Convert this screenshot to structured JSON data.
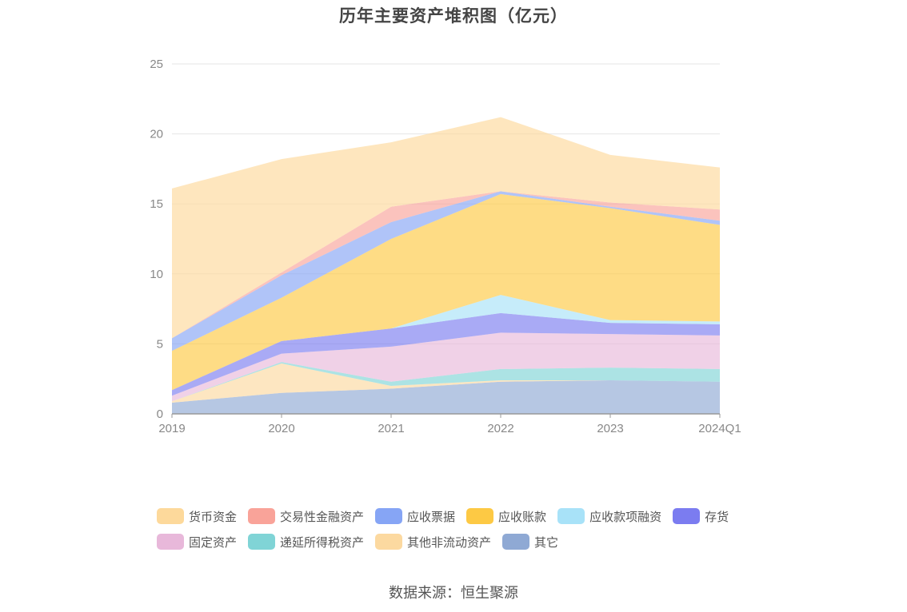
{
  "chart_data": {
    "type": "area",
    "stacked": true,
    "title": "历年主要资产堆积图（亿元）",
    "categories": [
      "2019",
      "2020",
      "2021",
      "2022",
      "2023",
      "2024Q1"
    ],
    "ylim": [
      0,
      25
    ],
    "yticks": [
      0,
      5,
      10,
      15,
      20,
      25
    ],
    "grid": true,
    "legend_position": "bottom",
    "series": [
      {
        "name": "其它",
        "color": "#8fa9d4",
        "values": [
          0.8,
          1.5,
          1.8,
          2.3,
          2.4,
          2.3
        ]
      },
      {
        "name": "其他非流动资产",
        "color": "#fcd9a0",
        "values": [
          0.1,
          2.1,
          0.2,
          0.1,
          0.0,
          0.0
        ]
      },
      {
        "name": "递延所得税资产",
        "color": "#80d4d6",
        "values": [
          0.0,
          0.1,
          0.3,
          0.8,
          0.9,
          0.9
        ]
      },
      {
        "name": "固定资产",
        "color": "#e8b8da",
        "values": [
          0.4,
          0.6,
          2.5,
          2.6,
          2.4,
          2.4
        ]
      },
      {
        "name": "存货",
        "color": "#7b7cf0",
        "values": [
          0.4,
          0.9,
          1.3,
          1.4,
          0.8,
          0.8
        ]
      },
      {
        "name": "应收款项融资",
        "color": "#a8e2f8",
        "values": [
          0.0,
          0.0,
          0.0,
          1.3,
          0.2,
          0.2
        ]
      },
      {
        "name": "应收账款",
        "color": "#fdc944",
        "values": [
          2.8,
          3.1,
          6.4,
          7.2,
          8.0,
          6.9
        ]
      },
      {
        "name": "应收票据",
        "color": "#86a5f5",
        "values": [
          0.9,
          1.6,
          1.2,
          0.2,
          0.1,
          0.3
        ]
      },
      {
        "name": "交易性金融资产",
        "color": "#f9a399",
        "values": [
          0.0,
          0.2,
          1.1,
          0.0,
          0.3,
          0.8
        ]
      },
      {
        "name": "货币资金",
        "color": "#fdd99b",
        "values": [
          10.7,
          8.1,
          4.6,
          5.3,
          3.4,
          3.0
        ]
      }
    ],
    "area_opacity": 0.65
  },
  "legend": {
    "row1": [
      {
        "label": "货币资金",
        "color": "#fdd99b"
      },
      {
        "label": "交易性金融资产",
        "color": "#f9a399"
      },
      {
        "label": "应收票据",
        "color": "#86a5f5"
      },
      {
        "label": "应收账款",
        "color": "#fdc944"
      },
      {
        "label": "应收款项融资",
        "color": "#a8e2f8"
      },
      {
        "label": "存货",
        "color": "#7b7cf0"
      }
    ],
    "row2": [
      {
        "label": "固定资产",
        "color": "#e8b8da"
      },
      {
        "label": "递延所得税资产",
        "color": "#80d4d6"
      },
      {
        "label": "其他非流动资产",
        "color": "#fcd9a0"
      },
      {
        "label": "其它",
        "color": "#8fa9d4"
      }
    ]
  },
  "source": "数据来源：恒生聚源"
}
